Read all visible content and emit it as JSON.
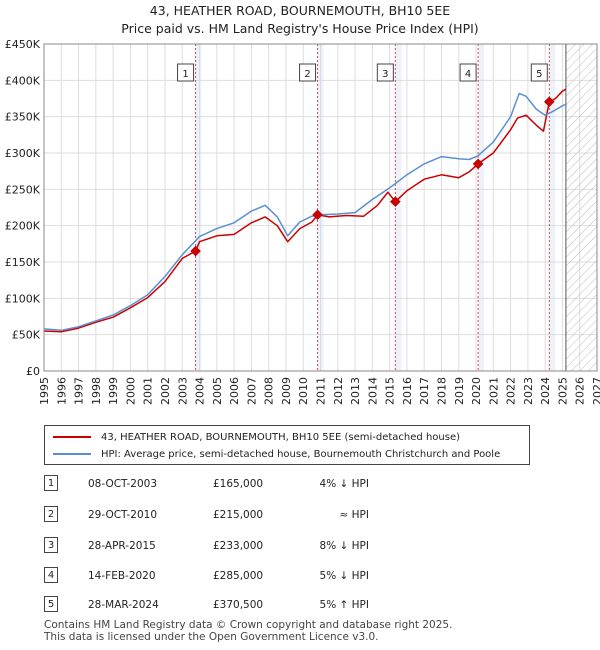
{
  "title_line1": "43, HEATHER ROAD, BOURNEMOUTH, BH10 5EE",
  "title_line2": "Price paid vs. HM Land Registry's House Price Index (HPI)",
  "chart_data": {
    "type": "line",
    "title": "43, HEATHER ROAD, BOURNEMOUTH, BH10 5EE - Price paid vs. HM Land Registry's House Price Index (HPI)",
    "xlim": [
      1995,
      2027
    ],
    "ylim": [
      0,
      450000
    ],
    "x_ticks": [
      "1995",
      "1996",
      "1997",
      "1998",
      "1999",
      "2000",
      "2001",
      "2002",
      "2003",
      "2004",
      "2005",
      "2006",
      "2007",
      "2008",
      "2009",
      "2010",
      "2011",
      "2012",
      "2013",
      "2014",
      "2015",
      "2016",
      "2017",
      "2018",
      "2019",
      "2020",
      "2021",
      "2022",
      "2023",
      "2024",
      "2025",
      "2026",
      "2027"
    ],
    "y_ticks": [
      {
        "value": 0,
        "label": "£0"
      },
      {
        "value": 50000,
        "label": "£50K"
      },
      {
        "value": 100000,
        "label": "£100K"
      },
      {
        "value": 150000,
        "label": "£150K"
      },
      {
        "value": 200000,
        "label": "£200K"
      },
      {
        "value": 250000,
        "label": "£250K"
      },
      {
        "value": 300000,
        "label": "£300K"
      },
      {
        "value": 350000,
        "label": "£350K"
      },
      {
        "value": 400000,
        "label": "£400K"
      },
      {
        "value": 450000,
        "label": "£450K"
      }
    ],
    "hatch_start": 2025.2,
    "series": [
      {
        "name": "43, HEATHER ROAD, BOURNEMOUTH, BH10 5EE (semi-detached house)",
        "color": "#cc0000",
        "points": [
          [
            1995,
            55000
          ],
          [
            1996,
            54000
          ],
          [
            1997,
            59000
          ],
          [
            1998,
            67000
          ],
          [
            1999,
            74000
          ],
          [
            2000,
            87000
          ],
          [
            2001,
            101000
          ],
          [
            2002,
            123000
          ],
          [
            2003,
            155000
          ],
          [
            2003.77,
            165000
          ],
          [
            2004,
            178000
          ],
          [
            2005,
            186000
          ],
          [
            2006,
            188000
          ],
          [
            2007,
            204000
          ],
          [
            2007.8,
            212000
          ],
          [
            2008.5,
            200000
          ],
          [
            2009.1,
            178000
          ],
          [
            2009.8,
            196000
          ],
          [
            2010.5,
            205000
          ],
          [
            2010.83,
            215000
          ],
          [
            2011.5,
            212000
          ],
          [
            2012.5,
            214000
          ],
          [
            2013.5,
            213000
          ],
          [
            2014.3,
            228000
          ],
          [
            2014.9,
            246000
          ],
          [
            2015.33,
            233000
          ],
          [
            2016,
            248000
          ],
          [
            2017,
            264000
          ],
          [
            2018,
            270000
          ],
          [
            2019,
            266000
          ],
          [
            2019.6,
            274000
          ],
          [
            2020.12,
            285000
          ],
          [
            2021,
            300000
          ],
          [
            2022,
            332000
          ],
          [
            2022.4,
            348000
          ],
          [
            2022.9,
            352000
          ],
          [
            2023.5,
            338000
          ],
          [
            2023.9,
            330000
          ],
          [
            2024.24,
            370500
          ],
          [
            2024.6,
            375000
          ],
          [
            2025,
            385000
          ],
          [
            2025.2,
            388000
          ]
        ]
      },
      {
        "name": "HPI: Average price, semi-detached house, Bournemouth Christchurch and Poole",
        "color": "#5b8fd4",
        "points": [
          [
            1995,
            58000
          ],
          [
            1996,
            56000
          ],
          [
            1997,
            61000
          ],
          [
            1998,
            69000
          ],
          [
            1999,
            77000
          ],
          [
            2000,
            90000
          ],
          [
            2001,
            105000
          ],
          [
            2002,
            130000
          ],
          [
            2003,
            160000
          ],
          [
            2004,
            185000
          ],
          [
            2005,
            196000
          ],
          [
            2006,
            204000
          ],
          [
            2007,
            220000
          ],
          [
            2007.8,
            228000
          ],
          [
            2008.5,
            212000
          ],
          [
            2009.1,
            186000
          ],
          [
            2009.8,
            205000
          ],
          [
            2010.5,
            213000
          ],
          [
            2011,
            215000
          ],
          [
            2012,
            216000
          ],
          [
            2013,
            218000
          ],
          [
            2014,
            236000
          ],
          [
            2015,
            252000
          ],
          [
            2016,
            270000
          ],
          [
            2017,
            285000
          ],
          [
            2018,
            295000
          ],
          [
            2019,
            292000
          ],
          [
            2019.6,
            291000
          ],
          [
            2020.1,
            296000
          ],
          [
            2021,
            315000
          ],
          [
            2022,
            350000
          ],
          [
            2022.5,
            382000
          ],
          [
            2022.9,
            378000
          ],
          [
            2023.5,
            360000
          ],
          [
            2024,
            352000
          ],
          [
            2024.5,
            358000
          ],
          [
            2025,
            365000
          ],
          [
            2025.2,
            367000
          ]
        ]
      }
    ],
    "sales": [
      {
        "id": "1",
        "date": "08-OCT-2003",
        "x": 2003.77,
        "price": 165000,
        "price_label": "£165,000",
        "hpi": "4% ↓ HPI"
      },
      {
        "id": "2",
        "date": "29-OCT-2010",
        "x": 2010.83,
        "price": 215000,
        "price_label": "£215,000",
        "hpi": "≈ HPI"
      },
      {
        "id": "3",
        "date": "28-APR-2015",
        "x": 2015.33,
        "price": 233000,
        "price_label": "£233,000",
        "hpi": "8% ↓ HPI"
      },
      {
        "id": "4",
        "date": "14-FEB-2020",
        "x": 2020.12,
        "price": 285000,
        "price_label": "£285,000",
        "hpi": "5% ↓ HPI"
      },
      {
        "id": "5",
        "date": "28-MAR-2024",
        "x": 2024.24,
        "price": 370500,
        "price_label": "£370,500",
        "hpi": "5% ↑ HPI"
      }
    ]
  },
  "legend": {
    "property_label": "43, HEATHER ROAD, BOURNEMOUTH, BH10 5EE (semi-detached house)",
    "hpi_label": "HPI: Average price, semi-detached house, Bournemouth Christchurch and Poole"
  },
  "footer": {
    "line1": "Contains HM Land Registry data © Crown copyright and database right 2025.",
    "line2": "This data is licensed under the Open Government Licence v3.0."
  }
}
